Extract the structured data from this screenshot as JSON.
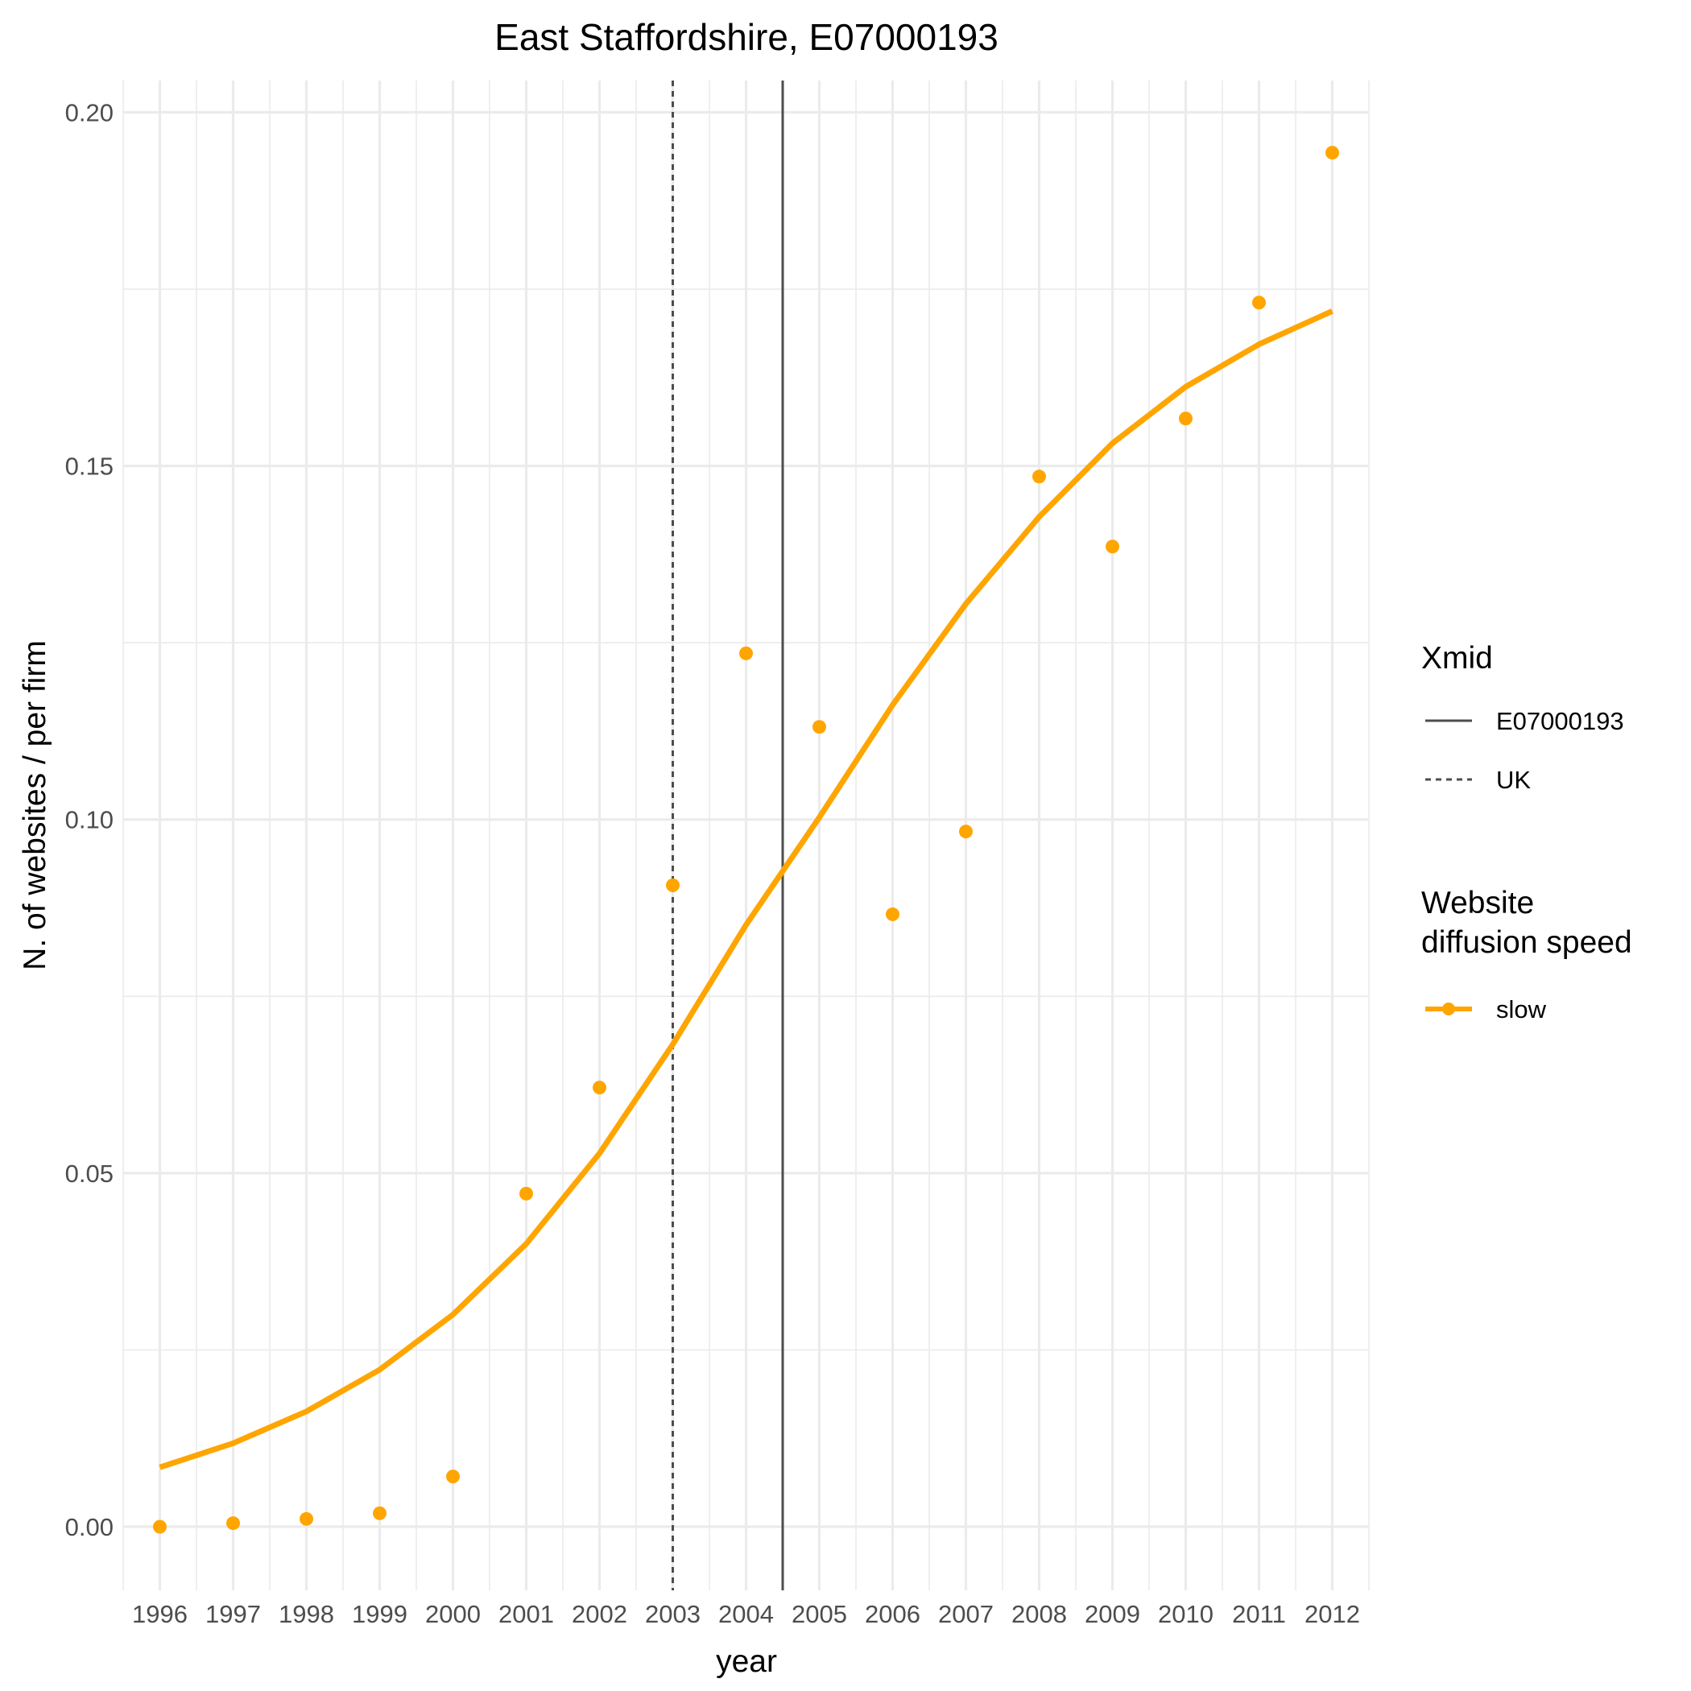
{
  "chart_data": {
    "type": "line",
    "title": "East Staffordshire, E07000193",
    "xlabel": "year",
    "ylabel": "N. of websites / per firm",
    "x": [
      1996,
      1997,
      1998,
      1999,
      2000,
      2001,
      2002,
      2003,
      2004,
      2005,
      2006,
      2007,
      2008,
      2009,
      2010,
      2011,
      2012
    ],
    "xlim": [
      1995.5,
      2012.5
    ],
    "ylim": [
      -0.009,
      0.2045
    ],
    "yticks": [
      0.0,
      0.05,
      0.1,
      0.15,
      0.2
    ],
    "ytick_labels": [
      "0.00",
      "0.05",
      "0.10",
      "0.15",
      "0.20"
    ],
    "grid": true,
    "legend_position": "right",
    "series": [
      {
        "name": "slow",
        "color": "#FFA500",
        "points": [
          0.0,
          0.0005,
          0.0011,
          0.0019,
          0.0071,
          0.0471,
          0.0621,
          0.0907,
          0.1235,
          0.1131,
          0.0866,
          0.0983,
          0.1485,
          0.1386,
          0.1567,
          0.1731,
          0.1943
        ],
        "fit": [
          0.0084,
          0.0118,
          0.0163,
          0.0222,
          0.03,
          0.04,
          0.0528,
          0.0682,
          0.0851,
          0.1003,
          0.1162,
          0.1305,
          0.1428,
          0.1532,
          0.1612,
          0.1672,
          0.1719
        ]
      }
    ],
    "vlines": [
      {
        "name": "E07000193",
        "x": 2004.5,
        "style": "solid",
        "color": "#4d4d4d"
      },
      {
        "name": "UK",
        "x": 2003.0,
        "style": "dashed",
        "color": "#4d4d4d"
      }
    ],
    "legend": {
      "xmid_title": "Xmid",
      "xmid_entries": [
        "E07000193",
        "UK"
      ],
      "speed_title_line1": "Website",
      "speed_title_line2": "diffusion speed",
      "speed_entries": [
        "slow"
      ]
    }
  }
}
